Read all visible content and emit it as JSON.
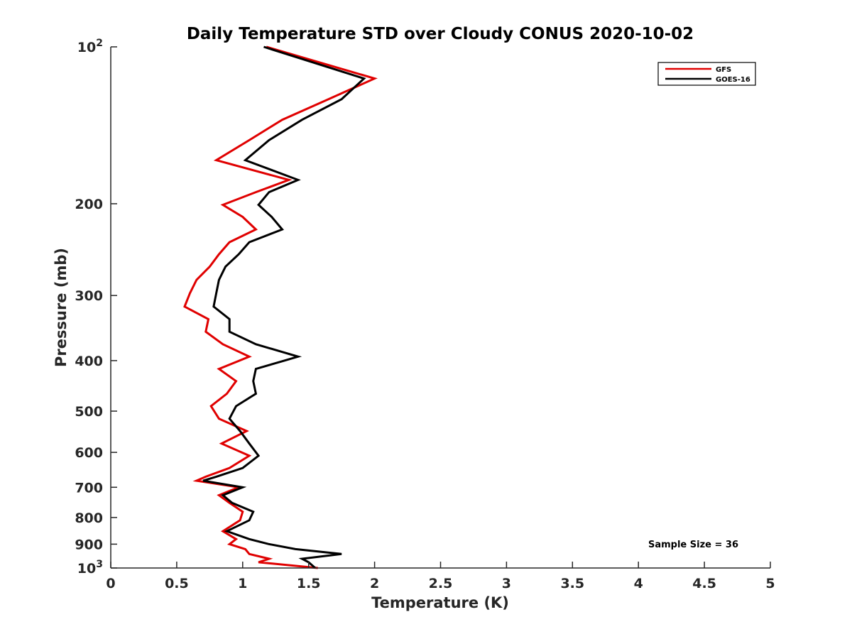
{
  "chart_data": {
    "type": "line",
    "title": "Daily Temperature STD over Cloudy CONUS 2020-10-02",
    "xlabel": "Temperature (K)",
    "ylabel": "Pressure (mb)",
    "xlim": [
      0,
      5
    ],
    "ylim": [
      100,
      1000
    ],
    "y_scale": "log",
    "y_reversed": true,
    "grid": false,
    "legend_position": "top-right",
    "x_ticks": [
      0,
      0.5,
      1,
      1.5,
      2,
      2.5,
      3,
      3.5,
      4,
      4.5,
      5
    ],
    "x_tick_labels": [
      "0",
      "0.5",
      "1",
      "1.5",
      "2",
      "2.5",
      "3",
      "3.5",
      "4",
      "4.5",
      "5"
    ],
    "y_ticks": [
      100,
      200,
      300,
      400,
      500,
      600,
      700,
      800,
      900,
      1000
    ],
    "y_tick_labels": [
      {
        "base": "10",
        "exp": "2"
      },
      {
        "base": "200",
        "exp": ""
      },
      {
        "base": "300",
        "exp": ""
      },
      {
        "base": "400",
        "exp": ""
      },
      {
        "base": "500",
        "exp": ""
      },
      {
        "base": "600",
        "exp": ""
      },
      {
        "base": "700",
        "exp": ""
      },
      {
        "base": "800",
        "exp": ""
      },
      {
        "base": "900",
        "exp": ""
      },
      {
        "base": "10",
        "exp": "3"
      }
    ],
    "series": [
      {
        "name": "GFS",
        "color": "#e00000",
        "points": [
          [
            1.18,
            100
          ],
          [
            2.0,
            115
          ],
          [
            1.65,
            126
          ],
          [
            1.3,
            138
          ],
          [
            1.05,
            151
          ],
          [
            0.8,
            165
          ],
          [
            1.35,
            180
          ],
          [
            1.1,
            190
          ],
          [
            0.85,
            201
          ],
          [
            1.0,
            212
          ],
          [
            1.1,
            224
          ],
          [
            0.9,
            237
          ],
          [
            0.82,
            250
          ],
          [
            0.75,
            264
          ],
          [
            0.65,
            280
          ],
          [
            0.6,
            297
          ],
          [
            0.56,
            315
          ],
          [
            0.74,
            333
          ],
          [
            0.72,
            352
          ],
          [
            0.85,
            372
          ],
          [
            1.05,
            393
          ],
          [
            0.82,
            415
          ],
          [
            0.95,
            438
          ],
          [
            0.88,
            463
          ],
          [
            0.76,
            489
          ],
          [
            0.82,
            517
          ],
          [
            1.03,
            546
          ],
          [
            0.84,
            577
          ],
          [
            1.05,
            609
          ],
          [
            0.9,
            643
          ],
          [
            0.72,
            668
          ],
          [
            0.65,
            680
          ],
          [
            0.97,
            700
          ],
          [
            0.82,
            725
          ],
          [
            0.9,
            750
          ],
          [
            1.0,
            780
          ],
          [
            0.98,
            810
          ],
          [
            0.85,
            850
          ],
          [
            0.95,
            880
          ],
          [
            0.9,
            900
          ],
          [
            1.02,
            920
          ],
          [
            1.05,
            940
          ],
          [
            1.2,
            960
          ],
          [
            1.12,
            975
          ],
          [
            1.57,
            1000
          ]
        ]
      },
      {
        "name": "GOES-16",
        "color": "#000000",
        "points": [
          [
            1.16,
            100
          ],
          [
            1.92,
            115
          ],
          [
            1.75,
            126
          ],
          [
            1.45,
            138
          ],
          [
            1.2,
            151
          ],
          [
            1.02,
            165
          ],
          [
            1.42,
            180
          ],
          [
            1.2,
            190
          ],
          [
            1.12,
            201
          ],
          [
            1.22,
            212
          ],
          [
            1.3,
            224
          ],
          [
            1.05,
            237
          ],
          [
            0.97,
            250
          ],
          [
            0.87,
            264
          ],
          [
            0.82,
            280
          ],
          [
            0.8,
            297
          ],
          [
            0.78,
            315
          ],
          [
            0.9,
            333
          ],
          [
            0.9,
            352
          ],
          [
            1.1,
            372
          ],
          [
            1.42,
            393
          ],
          [
            1.1,
            415
          ],
          [
            1.08,
            438
          ],
          [
            1.1,
            463
          ],
          [
            0.95,
            489
          ],
          [
            0.9,
            517
          ],
          [
            0.98,
            546
          ],
          [
            1.05,
            577
          ],
          [
            1.12,
            609
          ],
          [
            1.0,
            643
          ],
          [
            0.8,
            668
          ],
          [
            0.7,
            680
          ],
          [
            1.0,
            700
          ],
          [
            0.85,
            725
          ],
          [
            0.92,
            750
          ],
          [
            1.08,
            780
          ],
          [
            1.05,
            810
          ],
          [
            0.88,
            850
          ],
          [
            1.05,
            880
          ],
          [
            1.2,
            900
          ],
          [
            1.4,
            920
          ],
          [
            1.75,
            940
          ],
          [
            1.45,
            960
          ],
          [
            1.5,
            975
          ],
          [
            1.55,
            1000
          ]
        ]
      }
    ],
    "annotations": [
      "Sample Size = 36"
    ]
  }
}
